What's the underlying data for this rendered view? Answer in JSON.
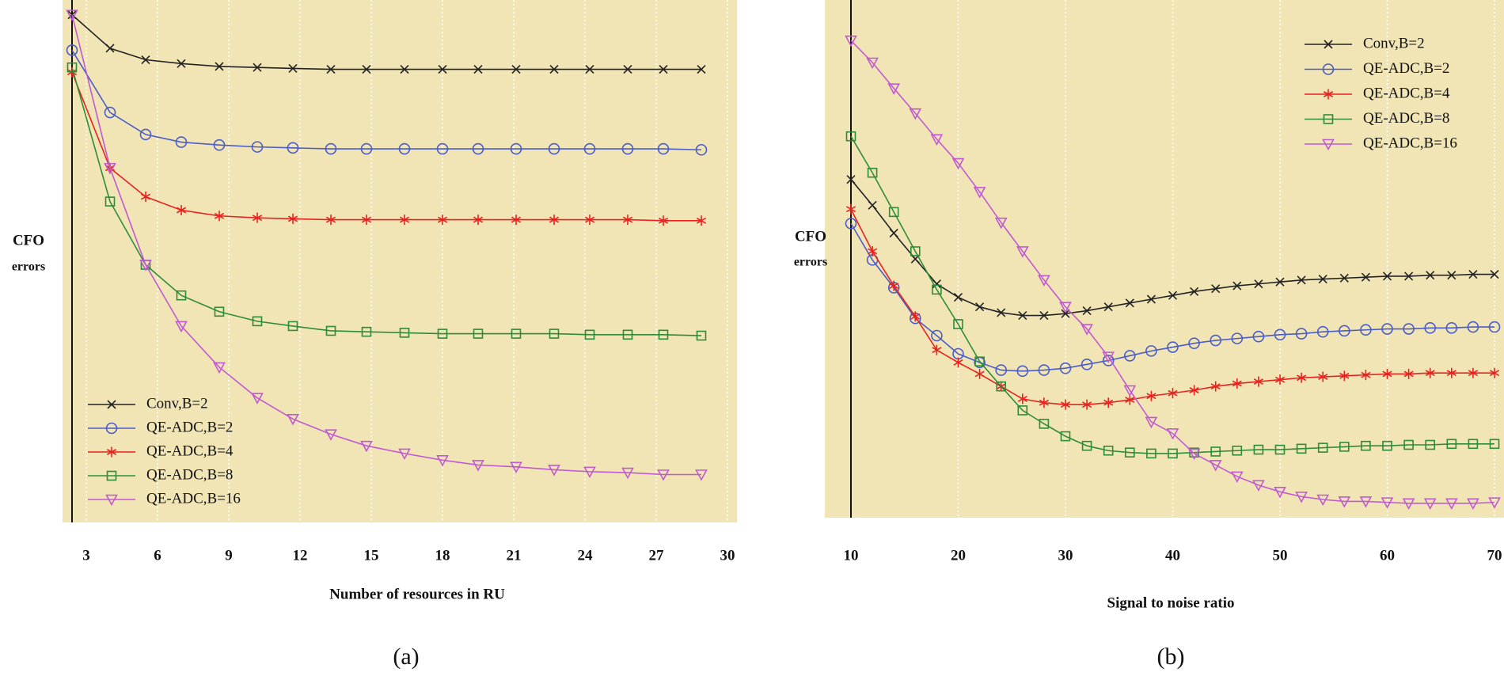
{
  "chart_data": [
    {
      "type": "line",
      "xlabel": "Number of resources in RU",
      "ylabel": [
        "CFO",
        "errors"
      ],
      "caption": "(a)",
      "x": [
        2.4,
        4,
        5.5,
        7,
        8.6,
        10.2,
        11.7,
        13.3,
        14.8,
        16.4,
        18,
        19.5,
        21.1,
        22.7,
        24.2,
        25.8,
        27.3,
        28.9
      ],
      "xlim": [
        2.4,
        30.4
      ],
      "xticks": [
        3,
        6,
        9,
        12,
        15,
        18,
        21,
        24,
        27,
        30
      ],
      "ylim": [
        0,
        533
      ],
      "grid": true,
      "legend": "lower left",
      "series": [
        {
          "name": "Conv,B=2",
          "color": "#222222",
          "marker": "x",
          "values": [
            530,
            495,
            483,
            479,
            476,
            475,
            474,
            473,
            473,
            473,
            473,
            473,
            473,
            473,
            473,
            473,
            473,
            473
          ]
        },
        {
          "name": "QE-ADC,B=2",
          "color": "#4a5cc8",
          "marker": "o",
          "values": [
            493,
            428,
            405,
            397,
            394,
            392,
            391,
            390,
            390,
            390,
            390,
            390,
            390,
            390,
            390,
            390,
            390,
            389
          ]
        },
        {
          "name": "QE-ADC,B=4",
          "color": "#e8231f",
          "marker": "*",
          "values": [
            470,
            370,
            340,
            326,
            320,
            318,
            317,
            316,
            316,
            316,
            316,
            316,
            316,
            316,
            316,
            316,
            315,
            315
          ]
        },
        {
          "name": "QE-ADC,B=8",
          "color": "#2e8b3a",
          "marker": "s",
          "values": [
            475,
            335,
            269,
            237,
            220,
            210,
            205,
            200,
            199,
            198,
            197,
            197,
            197,
            197,
            196,
            196,
            196,
            195
          ]
        },
        {
          "name": "QE-ADC,B=16",
          "color": "#c05ad0",
          "marker": "v",
          "values": [
            530,
            370,
            269,
            205,
            162,
            130,
            108,
            92,
            80,
            72,
            65,
            60,
            58,
            55,
            53,
            52,
            50,
            50
          ]
        }
      ]
    },
    {
      "type": "line",
      "xlabel": "Signal to noise ratio",
      "ylabel": [
        "CFO",
        "errors"
      ],
      "caption": "(b)",
      "x": [
        10,
        12,
        14,
        16,
        18,
        20,
        22,
        24,
        26,
        28,
        30,
        32,
        34,
        36,
        38,
        40,
        42,
        44,
        46,
        48,
        50,
        52,
        54,
        56,
        58,
        60,
        62,
        64,
        66,
        68,
        70
      ],
      "xlim": [
        10,
        70
      ],
      "xticks": [
        10,
        20,
        30,
        40,
        50,
        60,
        70
      ],
      "ylim": [
        0,
        532
      ],
      "grid": true,
      "legend": "upper right",
      "series": [
        {
          "name": "Conv,B=2",
          "color": "#222222",
          "marker": "x",
          "values": [
            353,
            326,
            297,
            270,
            244,
            230,
            220,
            214,
            211,
            211,
            213,
            216,
            220,
            224,
            228,
            232,
            236,
            239,
            242,
            244,
            246,
            248,
            249,
            250,
            251,
            252,
            252,
            253,
            253,
            254,
            254
          ]
        },
        {
          "name": "QE-ADC,B=2",
          "color": "#4a5cc8",
          "marker": "o",
          "values": [
            307,
            269,
            240,
            208,
            190,
            171,
            162,
            154,
            153,
            154,
            156,
            160,
            164,
            169,
            174,
            178,
            182,
            185,
            187,
            189,
            191,
            192,
            194,
            195,
            196,
            197,
            197,
            198,
            198,
            199,
            199
          ]
        },
        {
          "name": "QE-ADC,B=4",
          "color": "#e8231f",
          "marker": "*",
          "values": [
            322,
            278,
            242,
            210,
            175,
            162,
            150,
            137,
            124,
            120,
            118,
            118,
            120,
            123,
            127,
            130,
            133,
            137,
            140,
            142,
            144,
            146,
            147,
            148,
            149,
            150,
            150,
            151,
            151,
            151,
            151
          ]
        },
        {
          "name": "QE-ADC,B=8",
          "color": "#2e8b3a",
          "marker": "s",
          "values": [
            398,
            360,
            319,
            278,
            238,
            202,
            163,
            137,
            112,
            98,
            85,
            75,
            70,
            68,
            67,
            67,
            68,
            69,
            70,
            71,
            71,
            72,
            73,
            74,
            75,
            75,
            76,
            76,
            77,
            77,
            77
          ]
        },
        {
          "name": "QE-ADC,B=16",
          "color": "#c05ad0",
          "marker": "v",
          "values": [
            498,
            475,
            448,
            422,
            395,
            370,
            340,
            308,
            278,
            248,
            220,
            197,
            168,
            133,
            100,
            88,
            67,
            55,
            43,
            34,
            27,
            22,
            19,
            17,
            17,
            16,
            15,
            15,
            15,
            15,
            16
          ]
        }
      ]
    }
  ]
}
